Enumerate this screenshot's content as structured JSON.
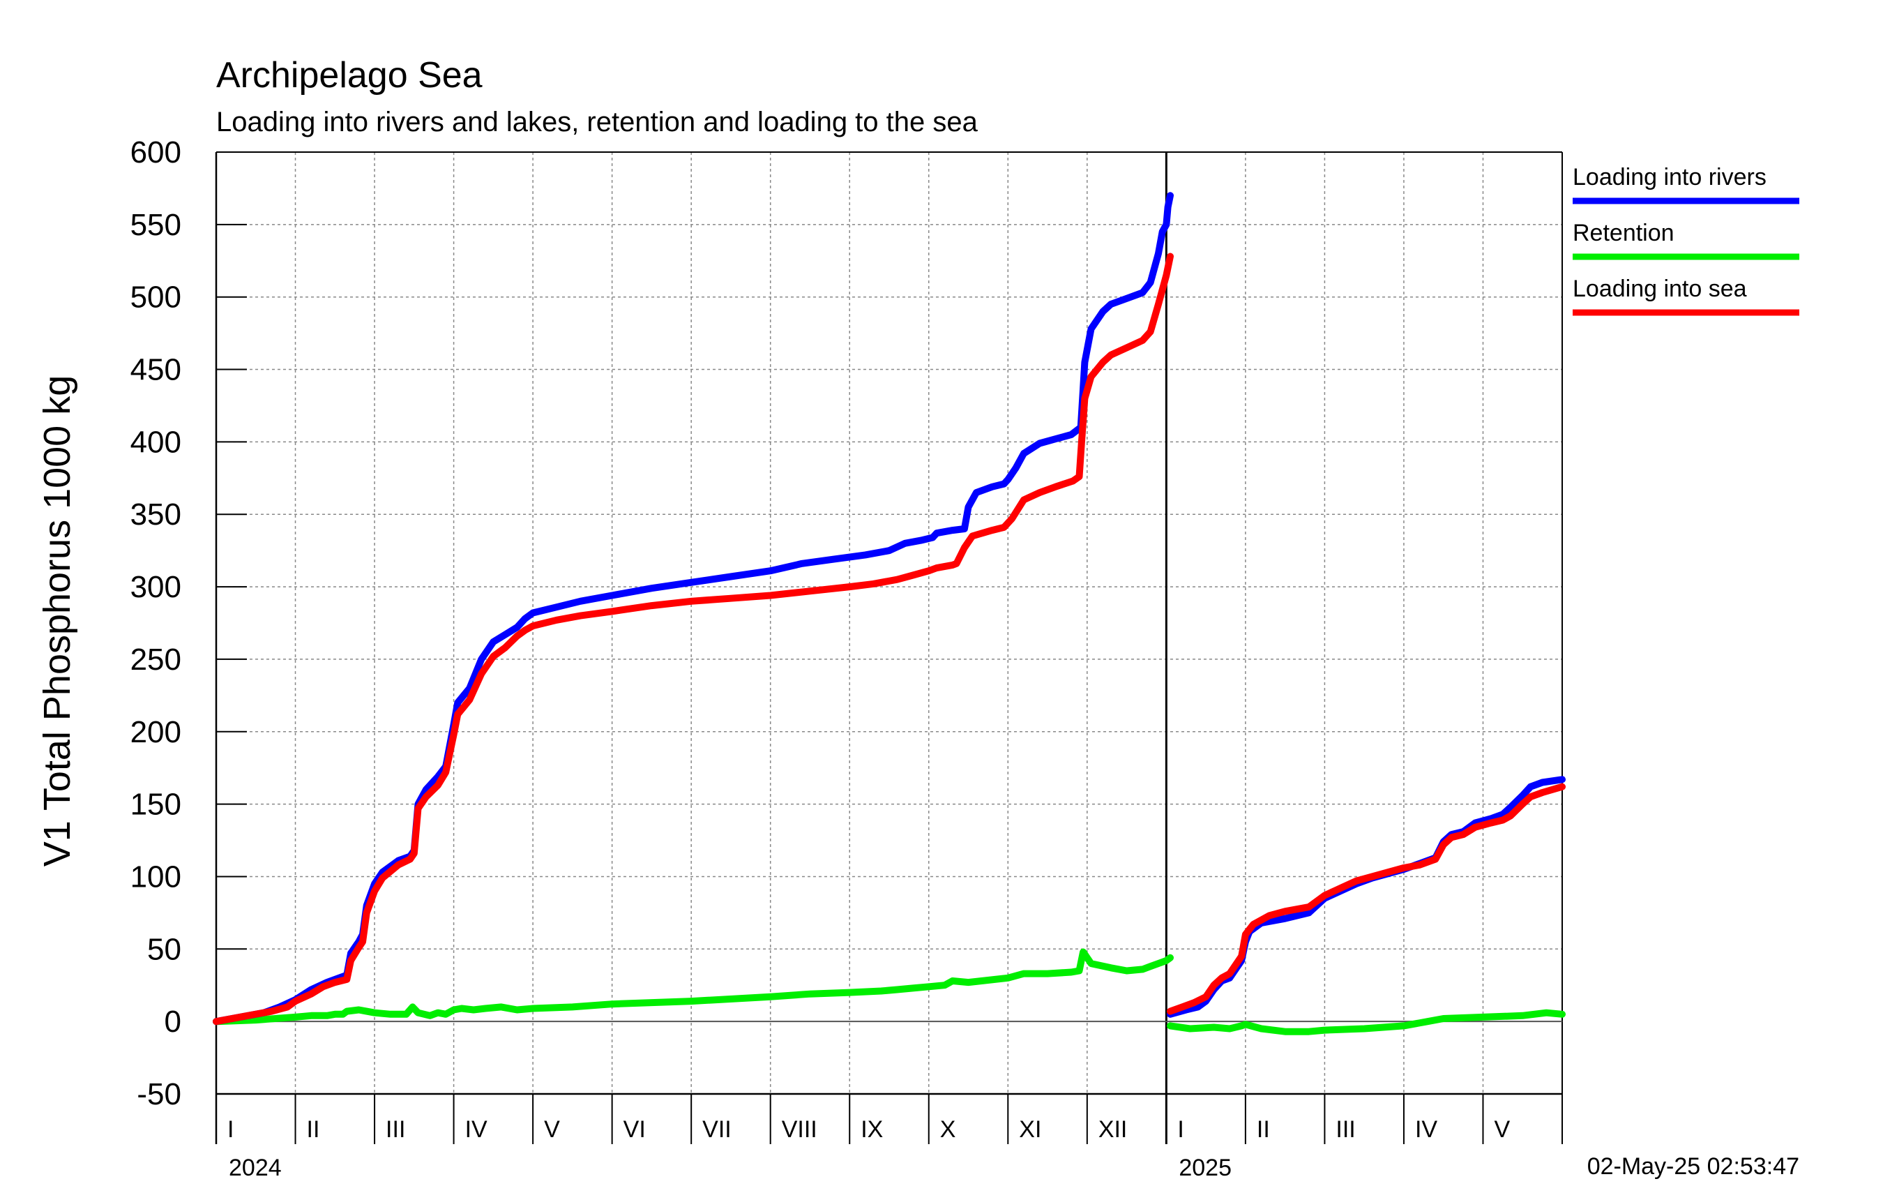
{
  "chart_data": {
    "type": "line",
    "title": "Archipelago Sea",
    "subtitle": "Loading into rivers and lakes, retention and loading to the sea",
    "ylabel": "V1 Total Phosphorus 1000 kg",
    "ylim": [
      -50,
      600
    ],
    "yticks": [
      600,
      550,
      500,
      450,
      400,
      350,
      300,
      250,
      200,
      150,
      100,
      50,
      0,
      -50
    ],
    "xlim": [
      0,
      17
    ],
    "x_unit": "months since 1 Jan 2024",
    "grid": true,
    "legend_position": "right-top",
    "timestamp": "02-May-25 02:53:47",
    "years": [
      {
        "label": "2024",
        "month_labels": [
          "I",
          "II",
          "III",
          "IV",
          "V",
          "VI",
          "VII",
          "VIII",
          "IX",
          "X",
          "XI",
          "XII"
        ]
      },
      {
        "label": "2025",
        "month_labels": [
          "I",
          "II",
          "III",
          "IV",
          "V"
        ]
      }
    ],
    "series": [
      {
        "name": "Loading into rivers",
        "color": "#0000ff",
        "segments": [
          [
            [
              0,
              0
            ],
            [
              0.3,
              3
            ],
            [
              0.6,
              6
            ],
            [
              0.8,
              10
            ],
            [
              1,
              15
            ],
            [
              1.2,
              22
            ],
            [
              1.4,
              27
            ],
            [
              1.55,
              30
            ],
            [
              1.65,
              32
            ],
            [
              1.7,
              47
            ],
            [
              1.8,
              55
            ],
            [
              1.85,
              60
            ],
            [
              1.9,
              80
            ],
            [
              2,
              95
            ],
            [
              2.1,
              103
            ],
            [
              2.3,
              111
            ],
            [
              2.45,
              114
            ],
            [
              2.5,
              118
            ],
            [
              2.55,
              150
            ],
            [
              2.65,
              160
            ],
            [
              2.8,
              169
            ],
            [
              2.9,
              176
            ],
            [
              3,
              205
            ],
            [
              3.05,
              220
            ],
            [
              3.2,
              230
            ],
            [
              3.35,
              250
            ],
            [
              3.5,
              262
            ],
            [
              3.65,
              267
            ],
            [
              3.8,
              272
            ],
            [
              3.9,
              278
            ],
            [
              4,
              282
            ],
            [
              4.3,
              286
            ],
            [
              4.6,
              290
            ],
            [
              5,
              294
            ],
            [
              5.5,
              299
            ],
            [
              6,
              303
            ],
            [
              6.5,
              307
            ],
            [
              7,
              311
            ],
            [
              7.4,
              316
            ],
            [
              7.8,
              319
            ],
            [
              8.2,
              322
            ],
            [
              8.5,
              325
            ],
            [
              8.7,
              330
            ],
            [
              8.9,
              332
            ],
            [
              9.05,
              334
            ],
            [
              9.1,
              337
            ],
            [
              9.3,
              339
            ],
            [
              9.45,
              340
            ],
            [
              9.5,
              355
            ],
            [
              9.6,
              365
            ],
            [
              9.8,
              369
            ],
            [
              9.95,
              371
            ],
            [
              10,
              374
            ],
            [
              10.1,
              382
            ],
            [
              10.2,
              392
            ],
            [
              10.4,
              399
            ],
            [
              10.6,
              402
            ],
            [
              10.8,
              405
            ],
            [
              10.92,
              410
            ],
            [
              10.97,
              455
            ],
            [
              11.05,
              478
            ],
            [
              11.2,
              490
            ],
            [
              11.3,
              495
            ],
            [
              11.5,
              499
            ],
            [
              11.7,
              503
            ],
            [
              11.8,
              510
            ],
            [
              11.9,
              530
            ],
            [
              11.95,
              545
            ],
            [
              12,
              550
            ],
            [
              12.02,
              562
            ],
            [
              12.05,
              570
            ]
          ],
          [
            [
              12.05,
              5
            ],
            [
              12.25,
              8
            ],
            [
              12.4,
              10
            ],
            [
              12.5,
              14
            ],
            [
              12.6,
              22
            ],
            [
              12.7,
              28
            ],
            [
              12.8,
              30
            ],
            [
              12.95,
              42
            ],
            [
              13,
              55
            ],
            [
              13.05,
              62
            ],
            [
              13.2,
              68
            ],
            [
              13.5,
              71
            ],
            [
              13.8,
              75
            ],
            [
              14,
              85
            ],
            [
              14.2,
              90
            ],
            [
              14.4,
              95
            ],
            [
              14.6,
              99
            ],
            [
              14.8,
              102
            ],
            [
              15,
              105
            ],
            [
              15.2,
              109
            ],
            [
              15.4,
              113
            ],
            [
              15.5,
              124
            ],
            [
              15.6,
              129
            ],
            [
              15.75,
              131
            ],
            [
              15.9,
              137
            ],
            [
              16.1,
              140
            ],
            [
              16.25,
              143
            ],
            [
              16.35,
              148
            ],
            [
              16.5,
              156
            ],
            [
              16.6,
              162
            ],
            [
              16.75,
              165
            ],
            [
              17,
              167
            ]
          ]
        ]
      },
      {
        "name": "Retention",
        "color": "#00ee00",
        "segments": [
          [
            [
              0,
              0
            ],
            [
              0.5,
              1
            ],
            [
              1,
              3
            ],
            [
              1.2,
              4
            ],
            [
              1.4,
              4
            ],
            [
              1.5,
              5
            ],
            [
              1.6,
              5
            ],
            [
              1.65,
              7
            ],
            [
              1.8,
              8
            ],
            [
              1.9,
              7
            ],
            [
              2,
              6
            ],
            [
              2.2,
              5
            ],
            [
              2.4,
              5
            ],
            [
              2.48,
              10
            ],
            [
              2.55,
              6
            ],
            [
              2.7,
              4
            ],
            [
              2.8,
              6
            ],
            [
              2.9,
              5
            ],
            [
              3,
              8
            ],
            [
              3.1,
              9
            ],
            [
              3.25,
              8
            ],
            [
              3.4,
              9
            ],
            [
              3.6,
              10
            ],
            [
              3.8,
              8
            ],
            [
              4,
              9
            ],
            [
              4.5,
              10
            ],
            [
              5,
              12
            ],
            [
              6,
              14
            ],
            [
              7,
              17
            ],
            [
              7.5,
              19
            ],
            [
              8,
              20
            ],
            [
              8.4,
              21
            ],
            [
              8.6,
              22
            ],
            [
              8.8,
              23
            ],
            [
              9,
              24
            ],
            [
              9.2,
              25
            ],
            [
              9.3,
              28
            ],
            [
              9.5,
              27
            ],
            [
              10,
              30
            ],
            [
              10.2,
              33
            ],
            [
              10.5,
              33
            ],
            [
              10.8,
              34
            ],
            [
              10.9,
              35
            ],
            [
              10.95,
              48
            ],
            [
              11.05,
              40
            ],
            [
              11.3,
              37
            ],
            [
              11.5,
              35
            ],
            [
              11.7,
              36
            ],
            [
              11.8,
              38
            ],
            [
              11.9,
              40
            ],
            [
              12,
              42
            ],
            [
              12.05,
              44
            ]
          ],
          [
            [
              12.05,
              -3
            ],
            [
              12.3,
              -5
            ],
            [
              12.6,
              -4
            ],
            [
              12.8,
              -5
            ],
            [
              12.95,
              -3
            ],
            [
              13,
              -2
            ],
            [
              13.2,
              -5
            ],
            [
              13.5,
              -7
            ],
            [
              13.8,
              -7
            ],
            [
              14,
              -6
            ],
            [
              14.5,
              -5
            ],
            [
              15,
              -3
            ],
            [
              15.3,
              0
            ],
            [
              15.5,
              2
            ],
            [
              16,
              3
            ],
            [
              16.5,
              4
            ],
            [
              16.8,
              6
            ],
            [
              17,
              5
            ]
          ]
        ]
      },
      {
        "name": "Loading into sea",
        "color": "#ff0000",
        "segments": [
          [
            [
              0,
              0
            ],
            [
              0.4,
              4
            ],
            [
              0.7,
              7
            ],
            [
              0.9,
              10
            ],
            [
              1,
              14
            ],
            [
              1.2,
              19
            ],
            [
              1.35,
              24
            ],
            [
              1.5,
              27
            ],
            [
              1.65,
              29
            ],
            [
              1.7,
              42
            ],
            [
              1.8,
              51
            ],
            [
              1.85,
              55
            ],
            [
              1.9,
              75
            ],
            [
              2,
              90
            ],
            [
              2.1,
              99
            ],
            [
              2.3,
              108
            ],
            [
              2.45,
              112
            ],
            [
              2.5,
              116
            ],
            [
              2.55,
              147
            ],
            [
              2.65,
              155
            ],
            [
              2.8,
              163
            ],
            [
              2.9,
              172
            ],
            [
              3,
              198
            ],
            [
              3.05,
              212
            ],
            [
              3.2,
              222
            ],
            [
              3.35,
              240
            ],
            [
              3.5,
              252
            ],
            [
              3.65,
              258
            ],
            [
              3.8,
              266
            ],
            [
              3.9,
              270
            ],
            [
              4,
              273
            ],
            [
              4.3,
              277
            ],
            [
              4.6,
              280
            ],
            [
              5,
              283
            ],
            [
              5.5,
              287
            ],
            [
              6,
              290
            ],
            [
              6.5,
              292
            ],
            [
              7,
              294
            ],
            [
              7.5,
              297
            ],
            [
              8,
              300
            ],
            [
              8.3,
              302
            ],
            [
              8.6,
              305
            ],
            [
              8.8,
              308
            ],
            [
              9,
              311
            ],
            [
              9.1,
              313
            ],
            [
              9.3,
              315
            ],
            [
              9.35,
              316
            ],
            [
              9.45,
              327
            ],
            [
              9.55,
              335
            ],
            [
              9.8,
              339
            ],
            [
              9.95,
              341
            ],
            [
              10.05,
              347
            ],
            [
              10.2,
              360
            ],
            [
              10.4,
              365
            ],
            [
              10.6,
              369
            ],
            [
              10.82,
              373
            ],
            [
              10.9,
              376
            ],
            [
              10.93,
              400
            ],
            [
              10.97,
              430
            ],
            [
              11.05,
              445
            ],
            [
              11.2,
              455
            ],
            [
              11.3,
              460
            ],
            [
              11.5,
              465
            ],
            [
              11.7,
              470
            ],
            [
              11.8,
              476
            ],
            [
              11.9,
              495
            ],
            [
              12,
              515
            ],
            [
              12.05,
              528
            ]
          ],
          [
            [
              12.05,
              7
            ],
            [
              12.2,
              10
            ],
            [
              12.35,
              13
            ],
            [
              12.5,
              17
            ],
            [
              12.6,
              25
            ],
            [
              12.7,
              30
            ],
            [
              12.8,
              33
            ],
            [
              12.95,
              45
            ],
            [
              13,
              60
            ],
            [
              13.1,
              67
            ],
            [
              13.3,
              73
            ],
            [
              13.5,
              76
            ],
            [
              13.8,
              79
            ],
            [
              14,
              87
            ],
            [
              14.2,
              92
            ],
            [
              14.4,
              97
            ],
            [
              14.6,
              100
            ],
            [
              14.8,
              103
            ],
            [
              15,
              106
            ],
            [
              15.2,
              108
            ],
            [
              15.4,
              112
            ],
            [
              15.5,
              122
            ],
            [
              15.6,
              127
            ],
            [
              15.75,
              129
            ],
            [
              15.9,
              134
            ],
            [
              16.1,
              137
            ],
            [
              16.25,
              139
            ],
            [
              16.35,
              142
            ],
            [
              16.5,
              150
            ],
            [
              16.6,
              155
            ],
            [
              16.75,
              158
            ],
            [
              17,
              162
            ]
          ]
        ]
      }
    ]
  }
}
